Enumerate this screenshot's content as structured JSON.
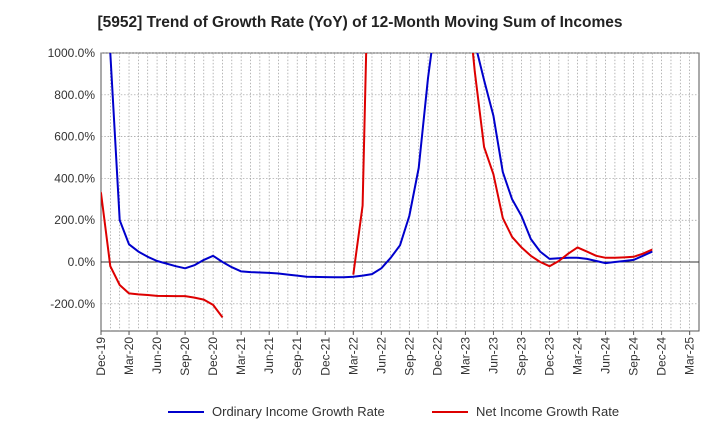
{
  "chart_data": {
    "type": "line",
    "title": "[5952]  Trend of Growth Rate (YoY) of 12-Month Moving Sum of Incomes",
    "ylim": [
      -330,
      1000
    ],
    "y_ticks": [
      "1000.0%",
      "800.0%",
      "600.0%",
      "400.0%",
      "200.0%",
      "0.0%",
      "-200.0%"
    ],
    "y_tick_values": [
      1000,
      800,
      600,
      400,
      200,
      0,
      -200
    ],
    "x_tick_labels": [
      "Dec-19",
      "Mar-20",
      "Jun-20",
      "Sep-20",
      "Dec-20",
      "Mar-21",
      "Jun-21",
      "Sep-21",
      "Dec-21",
      "Mar-22",
      "Jun-22",
      "Sep-22",
      "Dec-22",
      "Mar-23",
      "Jun-23",
      "Sep-23",
      "Dec-23",
      "Mar-24",
      "Jun-24",
      "Sep-24",
      "Dec-24",
      "Mar-25"
    ],
    "x_months_count": 64,
    "grid": true,
    "legend_position": "bottom",
    "series": [
      {
        "name": "Ordinary Income Growth Rate",
        "color": "#0000cc",
        "points": [
          [
            0.5,
            1050
          ],
          [
            1,
            1000
          ],
          [
            2,
            200
          ],
          [
            3,
            85
          ],
          [
            4,
            50
          ],
          [
            5,
            25
          ],
          [
            6,
            5
          ],
          [
            8,
            -20
          ],
          [
            9,
            -30
          ],
          [
            10,
            -15
          ],
          [
            11,
            10
          ],
          [
            12,
            30
          ],
          [
            13,
            0
          ],
          [
            14,
            -25
          ],
          [
            15,
            -45
          ],
          [
            16,
            -48
          ],
          [
            18,
            -52
          ],
          [
            19,
            -55
          ],
          [
            20,
            -60
          ],
          [
            21,
            -65
          ],
          [
            22,
            -70
          ],
          [
            24,
            -72
          ],
          [
            25,
            -73
          ],
          [
            26,
            -73
          ],
          [
            27,
            -70
          ],
          [
            28,
            -65
          ],
          [
            29,
            -58
          ],
          [
            30,
            -30
          ],
          [
            31,
            20
          ],
          [
            32,
            80
          ],
          [
            33,
            220
          ],
          [
            34,
            450
          ],
          [
            35,
            880
          ],
          [
            35.5,
            1050
          ],
          [
            40,
            1050
          ],
          [
            41,
            870
          ],
          [
            42,
            700
          ],
          [
            43,
            430
          ],
          [
            44,
            300
          ],
          [
            45,
            220
          ],
          [
            46,
            110
          ],
          [
            47,
            50
          ],
          [
            48,
            15
          ],
          [
            49,
            18
          ],
          [
            50,
            20
          ],
          [
            51,
            20
          ],
          [
            52,
            15
          ],
          [
            53,
            5
          ],
          [
            54,
            -5
          ],
          [
            55,
            0
          ],
          [
            56,
            5
          ],
          [
            57,
            10
          ],
          [
            58,
            30
          ],
          [
            59,
            50
          ]
        ]
      },
      {
        "name": "Net Income Growth Rate",
        "color": "#dd0000",
        "segments": [
          [
            [
              -0.3,
              350
            ],
            [
              0,
              330
            ],
            [
              1,
              -20
            ],
            [
              2,
              -110
            ],
            [
              3,
              -150
            ],
            [
              4,
              -155
            ],
            [
              5,
              -158
            ],
            [
              6,
              -162
            ],
            [
              8,
              -163
            ],
            [
              9,
              -163
            ],
            [
              10,
              -170
            ],
            [
              11,
              -180
            ],
            [
              12,
              -205
            ],
            [
              13,
              -265
            ]
          ],
          [
            [
              27,
              -60
            ],
            [
              28,
              270
            ],
            [
              28.4,
              1050
            ]
          ],
          [
            [
              39.7,
              1050
            ],
            [
              40,
              910
            ],
            [
              41,
              550
            ],
            [
              42,
              420
            ],
            [
              43,
              210
            ],
            [
              44,
              120
            ],
            [
              45,
              70
            ],
            [
              46,
              30
            ],
            [
              47,
              0
            ],
            [
              48,
              -20
            ],
            [
              49,
              5
            ],
            [
              50,
              40
            ],
            [
              51,
              70
            ],
            [
              52,
              50
            ],
            [
              53,
              30
            ],
            [
              54,
              20
            ],
            [
              55,
              20
            ],
            [
              56,
              22
            ],
            [
              57,
              25
            ],
            [
              58,
              40
            ],
            [
              59,
              60
            ]
          ]
        ]
      }
    ]
  }
}
